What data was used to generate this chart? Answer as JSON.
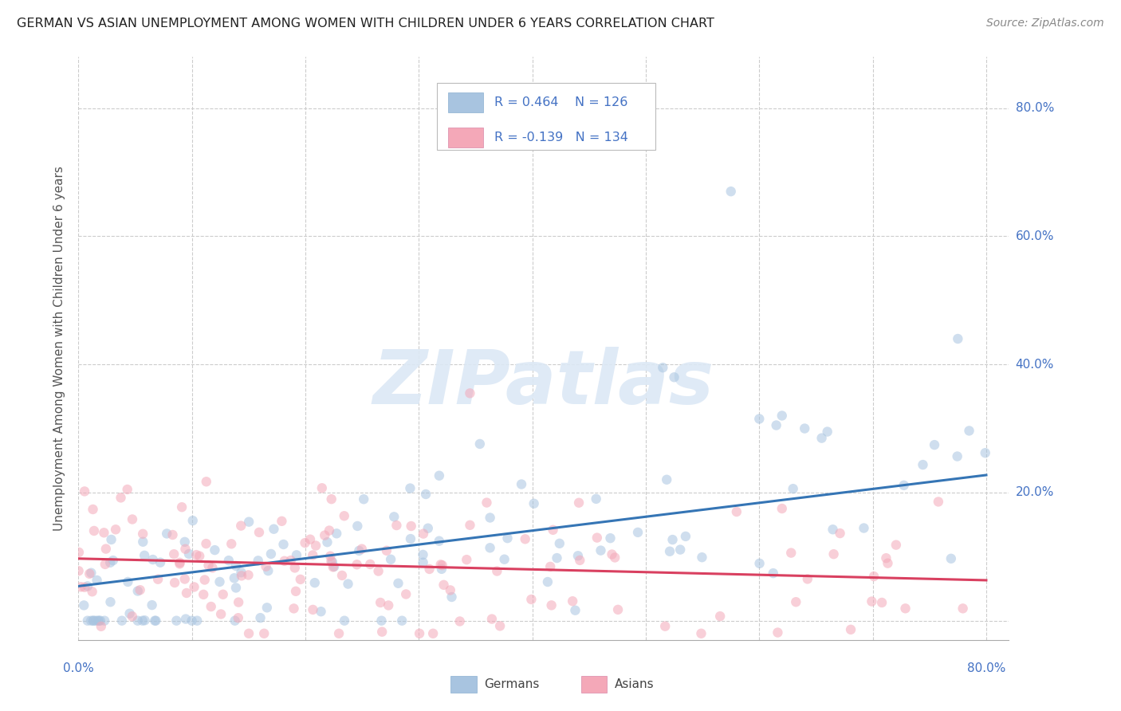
{
  "title": "GERMAN VS ASIAN UNEMPLOYMENT AMONG WOMEN WITH CHILDREN UNDER 6 YEARS CORRELATION CHART",
  "source": "Source: ZipAtlas.com",
  "ylabel": "Unemployment Among Women with Children Under 6 years",
  "background_color": "#ffffff",
  "grid_color": "#cccccc",
  "german_color": "#a8c4e0",
  "asian_color": "#f4a8b8",
  "german_line_color": "#3575b5",
  "asian_line_color": "#d94060",
  "german_R": 0.464,
  "german_N": 126,
  "asian_R": -0.139,
  "asian_N": 134,
  "legend_text_color": "#4472c4",
  "axis_label_color": "#4472c4",
  "dot_size": 80,
  "dot_alpha": 0.55,
  "xlim": [
    0.0,
    0.82
  ],
  "ylim": [
    -0.03,
    0.88
  ],
  "yticks": [
    0.0,
    0.2,
    0.4,
    0.6,
    0.8
  ],
  "ytick_labels_right": [
    "",
    "20.0%",
    "40.0%",
    "60.0%",
    "80.0%"
  ],
  "xtick_labels_bottom": [
    "0.0%",
    "80.0%"
  ],
  "watermark_text": "ZIPatlas",
  "watermark_color": "#dce8f5",
  "watermark_alpha": 0.9,
  "legend_german_label": "R = 0.464    N = 126",
  "legend_asian_label": "R = -0.139   N = 134",
  "bottom_legend_german": "Germans",
  "bottom_legend_asian": "Asians"
}
